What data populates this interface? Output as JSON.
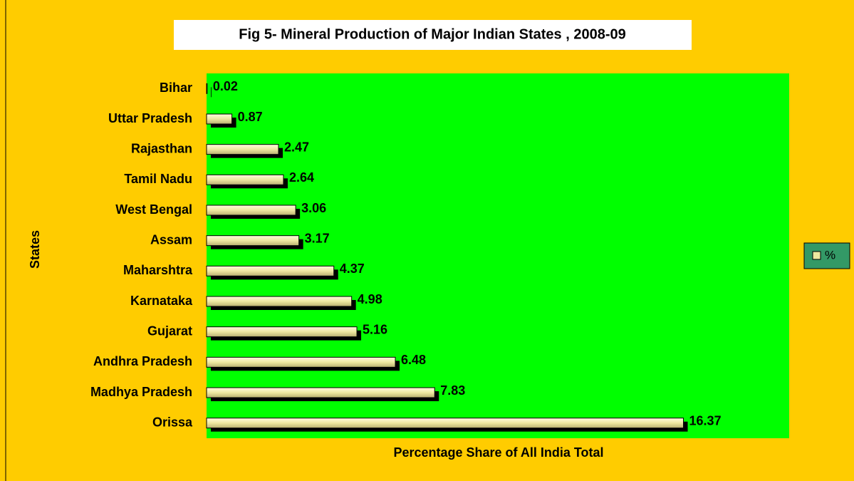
{
  "chart_data": {
    "type": "bar",
    "orientation": "horizontal",
    "title": "Fig 5- Mineral Production of Major Indian States , 2008-09",
    "x_label": "Percentage Share of All India Total",
    "y_label": "States",
    "categories": [
      "Bihar",
      "Uttar Pradesh",
      "Rajasthan",
      "Tamil Nadu",
      "West Bengal",
      "Assam",
      "Maharshtra",
      "Karnataka",
      "Gujarat",
      "Andhra Pradesh",
      "Madhya Pradesh",
      "Orissa"
    ],
    "series": [
      {
        "name": "%",
        "color": "#eee8a0",
        "values": [
          0.02,
          0.87,
          2.47,
          2.64,
          3.06,
          3.17,
          4.37,
          4.98,
          5.16,
          6.48,
          7.83,
          16.37
        ]
      }
    ],
    "xlim": [
      0,
      20
    ],
    "legend": "right"
  }
}
